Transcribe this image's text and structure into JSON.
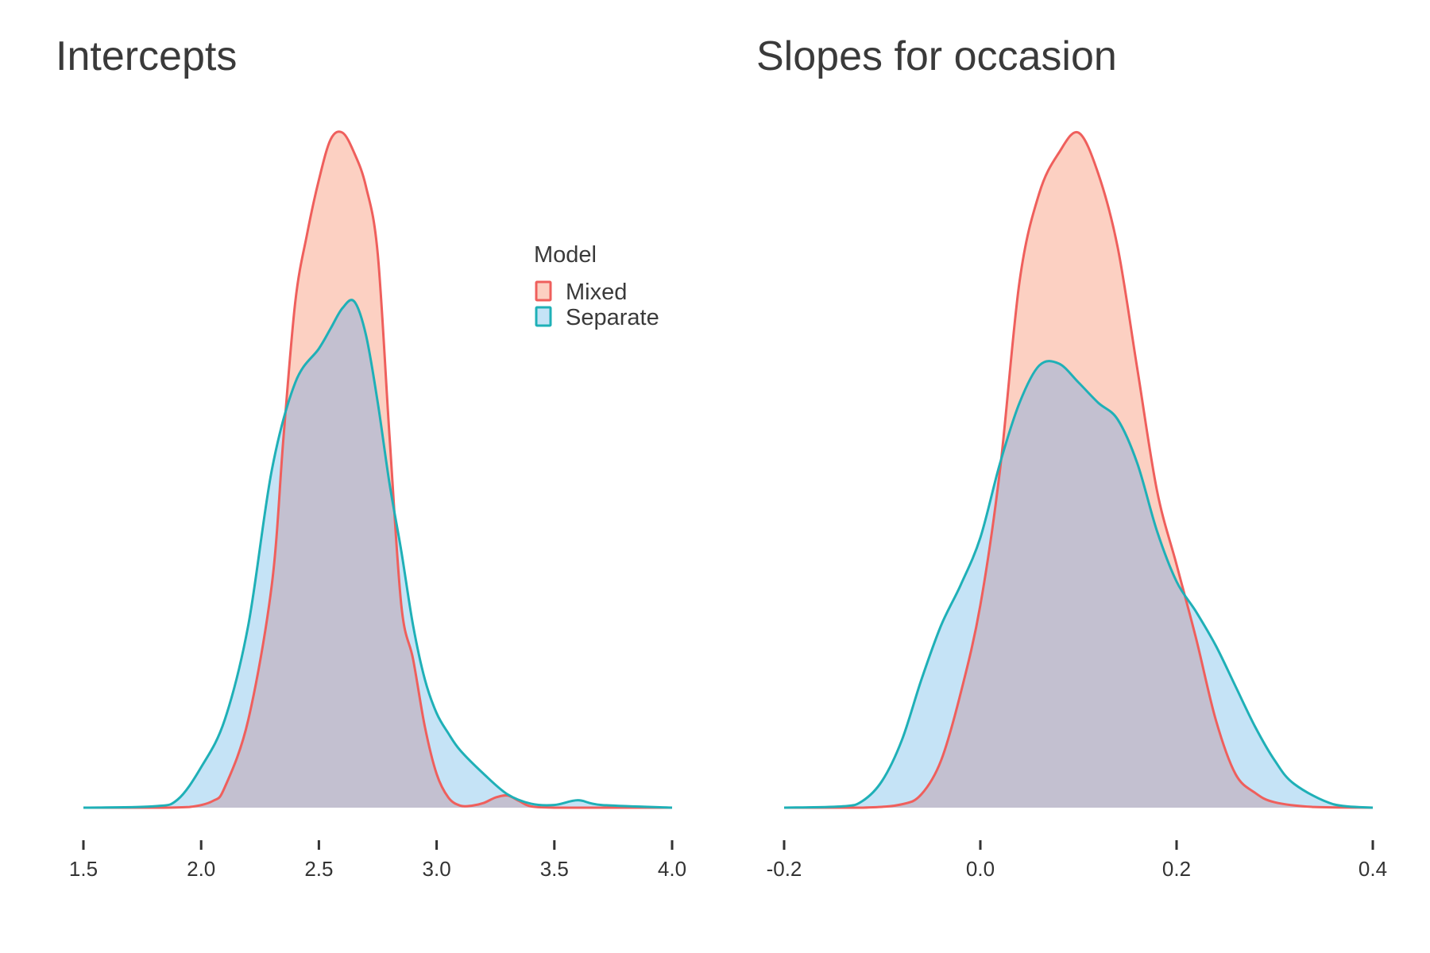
{
  "legend": {
    "title": "Model",
    "placement": "inside-top-right-of-left-panel",
    "entries": [
      {
        "name": "Mixed",
        "stroke": "#ef5f5c",
        "fill": "#fcd0c2"
      },
      {
        "name": "Separate",
        "stroke": "#1fb0b7",
        "fill": "#c5e3f6"
      }
    ]
  },
  "overlap_fill": "#c3c0d0",
  "chart_data": [
    {
      "type": "area",
      "subtype": "density",
      "title": "Intercepts",
      "xlabel": "",
      "ylabel": "",
      "grid": false,
      "xlim": [
        1.5,
        4.0
      ],
      "ylim": [
        0,
        1.0
      ],
      "x_ticks": [
        1.5,
        2.0,
        2.5,
        3.0,
        3.5,
        4.0
      ],
      "x_tick_labels": [
        "1.5",
        "2.0",
        "2.5",
        "3.0",
        "3.5",
        "4.0"
      ],
      "series": [
        {
          "name": "Mixed",
          "x": [
            1.5,
            1.8,
            1.95,
            2.05,
            2.1,
            2.2,
            2.3,
            2.35,
            2.4,
            2.45,
            2.5,
            2.55,
            2.6,
            2.65,
            2.7,
            2.75,
            2.8,
            2.85,
            2.9,
            2.95,
            3.0,
            3.05,
            3.1,
            3.15,
            3.2,
            3.25,
            3.3,
            3.35,
            3.4,
            3.5,
            3.7,
            4.0
          ],
          "y": [
            0,
            0,
            0.001,
            0.01,
            0.03,
            0.13,
            0.33,
            0.55,
            0.75,
            0.85,
            0.93,
            0.99,
            1.0,
            0.97,
            0.92,
            0.82,
            0.55,
            0.3,
            0.22,
            0.12,
            0.05,
            0.015,
            0.003,
            0.003,
            0.007,
            0.015,
            0.018,
            0.01,
            0.002,
            0,
            0,
            0
          ]
        },
        {
          "name": "Separate",
          "x": [
            1.5,
            1.8,
            1.9,
            2.0,
            2.1,
            2.2,
            2.3,
            2.4,
            2.5,
            2.55,
            2.6,
            2.65,
            2.7,
            2.75,
            2.8,
            2.85,
            2.9,
            2.95,
            3.0,
            3.05,
            3.1,
            3.2,
            3.3,
            3.4,
            3.5,
            3.6,
            3.7,
            4.0
          ],
          "y": [
            0,
            0.002,
            0.012,
            0.06,
            0.13,
            0.27,
            0.5,
            0.63,
            0.68,
            0.71,
            0.74,
            0.75,
            0.7,
            0.6,
            0.48,
            0.38,
            0.27,
            0.19,
            0.14,
            0.11,
            0.085,
            0.05,
            0.02,
            0.006,
            0.004,
            0.011,
            0.004,
            0
          ]
        }
      ]
    },
    {
      "type": "area",
      "subtype": "density",
      "title": "Slopes for occasion",
      "xlabel": "",
      "ylabel": "",
      "grid": false,
      "xlim": [
        -0.2,
        0.4
      ],
      "ylim": [
        0,
        1.0
      ],
      "x_ticks": [
        -0.2,
        0.0,
        0.2,
        0.4
      ],
      "x_tick_labels": [
        "-0.2",
        "0.0",
        "0.2",
        "0.4"
      ],
      "series": [
        {
          "name": "Mixed",
          "x": [
            -0.2,
            -0.12,
            -0.08,
            -0.06,
            -0.04,
            -0.02,
            0.0,
            0.02,
            0.04,
            0.06,
            0.08,
            0.1,
            0.12,
            0.14,
            0.16,
            0.18,
            0.2,
            0.22,
            0.24,
            0.26,
            0.28,
            0.3,
            0.34,
            0.4
          ],
          "y": [
            0,
            0,
            0.005,
            0.02,
            0.07,
            0.17,
            0.3,
            0.5,
            0.78,
            0.91,
            0.97,
            1.0,
            0.94,
            0.83,
            0.65,
            0.47,
            0.36,
            0.25,
            0.13,
            0.05,
            0.022,
            0.008,
            0.001,
            0
          ]
        },
        {
          "name": "Separate",
          "x": [
            -0.2,
            -0.14,
            -0.12,
            -0.1,
            -0.08,
            -0.06,
            -0.04,
            -0.02,
            0.0,
            0.02,
            0.04,
            0.06,
            0.08,
            0.1,
            0.12,
            0.14,
            0.16,
            0.18,
            0.2,
            0.22,
            0.24,
            0.26,
            0.28,
            0.3,
            0.32,
            0.36,
            0.4
          ],
          "y": [
            0,
            0.002,
            0.01,
            0.04,
            0.1,
            0.19,
            0.27,
            0.33,
            0.4,
            0.51,
            0.6,
            0.655,
            0.658,
            0.63,
            0.6,
            0.575,
            0.51,
            0.41,
            0.335,
            0.29,
            0.24,
            0.18,
            0.12,
            0.07,
            0.035,
            0.005,
            0
          ]
        }
      ]
    }
  ]
}
